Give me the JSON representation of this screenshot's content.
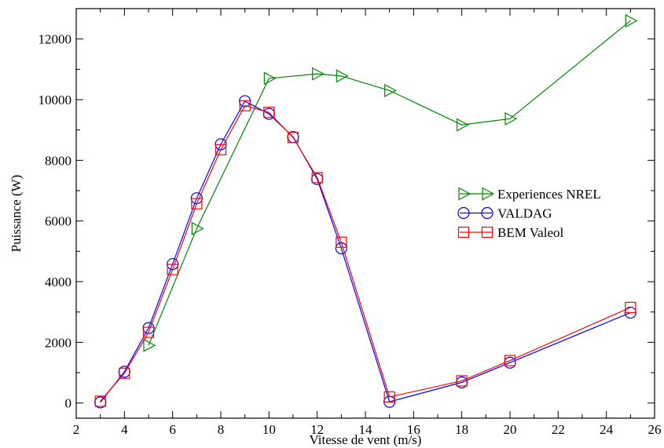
{
  "chart_data": {
    "type": "line",
    "title": "",
    "xlabel": "Vitesse de vent (m/s)",
    "ylabel": "Puissance (W)",
    "xlim": [
      2,
      26
    ],
    "ylim": [
      -500,
      13000
    ],
    "xticks": [
      2,
      4,
      6,
      8,
      10,
      12,
      14,
      16,
      18,
      20,
      22,
      24,
      26
    ],
    "yticks": [
      0,
      2000,
      4000,
      6000,
      8000,
      10000,
      12000
    ],
    "grid": false,
    "legend_position": "right-middle",
    "series": [
      {
        "name": "Experiences NREL",
        "color": "#008800",
        "marker": "triangle-right",
        "points": [
          [
            5,
            1900
          ],
          [
            7,
            5750
          ],
          [
            10,
            10700
          ],
          [
            12,
            10850
          ],
          [
            13,
            10780
          ],
          [
            15,
            10300
          ],
          [
            18,
            9170
          ],
          [
            20,
            9370
          ],
          [
            25,
            12600
          ]
        ]
      },
      {
        "name": "VALDAG",
        "color": "#0000ff",
        "marker": "circle",
        "points": [
          [
            3,
            20
          ],
          [
            4,
            1030
          ],
          [
            5,
            2470
          ],
          [
            6,
            4580
          ],
          [
            7,
            6750
          ],
          [
            8,
            8530
          ],
          [
            9,
            9950
          ],
          [
            10,
            9530
          ],
          [
            11,
            8770
          ],
          [
            12,
            7380
          ],
          [
            13,
            5100
          ],
          [
            15,
            40
          ],
          [
            18,
            680
          ],
          [
            20,
            1330
          ],
          [
            25,
            2980
          ]
        ]
      },
      {
        "name": "BEM Valeol",
        "color": "#ff0000",
        "marker": "square",
        "points": [
          [
            3,
            60
          ],
          [
            4,
            980
          ],
          [
            5,
            2330
          ],
          [
            6,
            4400
          ],
          [
            7,
            6570
          ],
          [
            8,
            8350
          ],
          [
            9,
            9800
          ],
          [
            10,
            9580
          ],
          [
            11,
            8750
          ],
          [
            12,
            7430
          ],
          [
            13,
            5300
          ],
          [
            15,
            200
          ],
          [
            18,
            730
          ],
          [
            20,
            1400
          ],
          [
            25,
            3150
          ]
        ]
      }
    ]
  }
}
